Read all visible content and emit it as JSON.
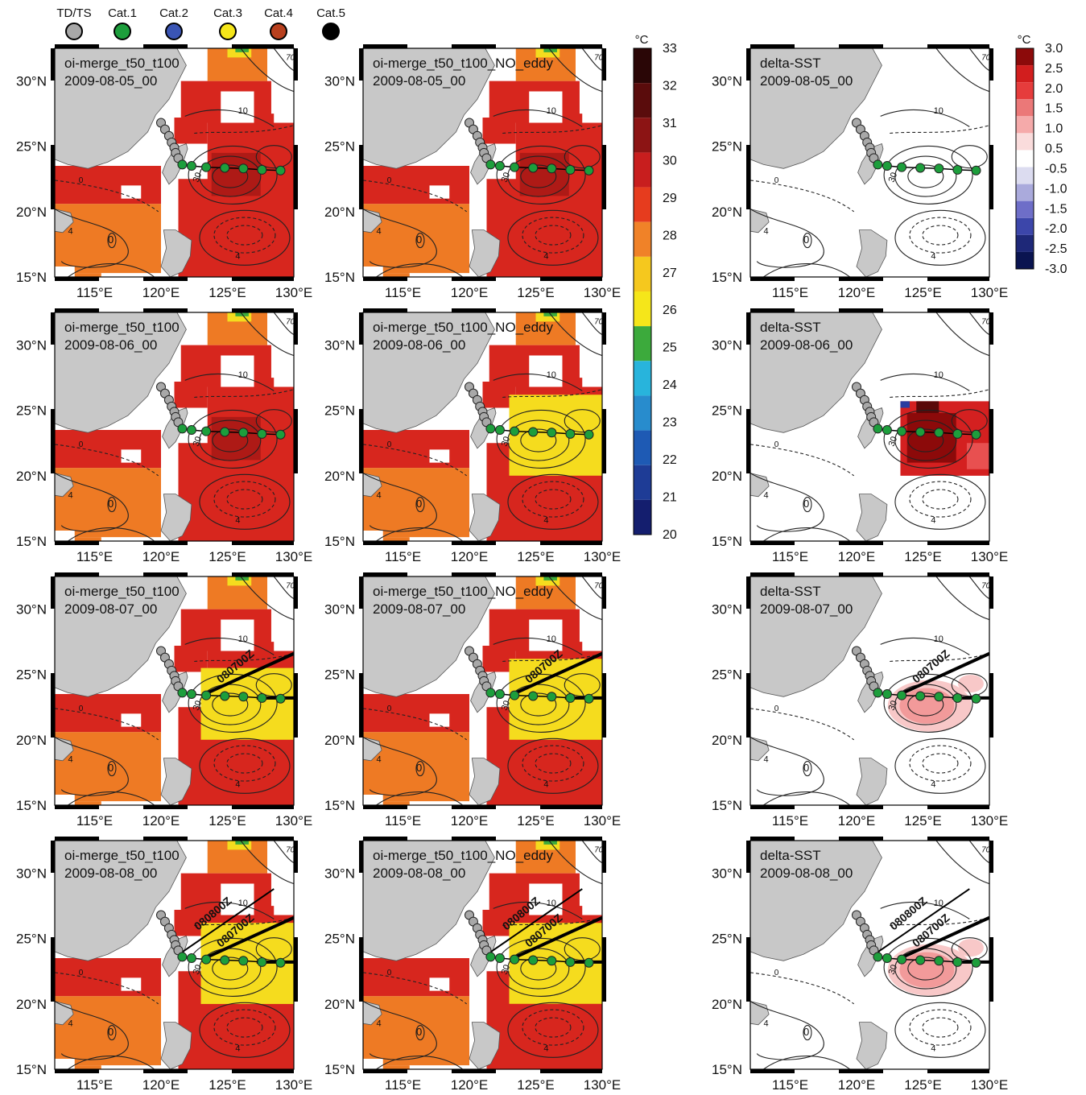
{
  "legend": {
    "items": [
      {
        "label": "TD/TS",
        "color": "#a8a8a8"
      },
      {
        "label": "Cat.1",
        "color": "#1d9e3c"
      },
      {
        "label": "Cat.2",
        "color": "#3a55b4"
      },
      {
        "label": "Cat.3",
        "color": "#f5e61a"
      },
      {
        "label": "Cat.4",
        "color": "#b8401e"
      },
      {
        "label": "Cat.5",
        "color": "#000000"
      }
    ]
  },
  "axes": {
    "lat_labels": [
      "30°N",
      "25°N",
      "20°N",
      "15°N"
    ],
    "lon_labels": [
      "115°E",
      "120°E",
      "125°E",
      "130°E"
    ]
  },
  "colorbar_sst": {
    "unit": "°C",
    "ticks": [
      "33",
      "32",
      "31",
      "30",
      "29",
      "28",
      "27",
      "26",
      "25",
      "24",
      "23",
      "22",
      "21",
      "20"
    ],
    "colors": [
      "#2a0606",
      "#5a0c0c",
      "#8c1414",
      "#c81e1e",
      "#e63c1e",
      "#f08228",
      "#f5c81e",
      "#f5e61a",
      "#3caa3c",
      "#28b4dc",
      "#288ccd",
      "#1e5ab4",
      "#1e3c96",
      "#141e6e"
    ]
  },
  "colorbar_delta": {
    "unit": "°C",
    "ticks": [
      "3.0",
      "2.5",
      "2.0",
      "1.5",
      "1.0",
      "0.5",
      "-0.5",
      "-1.0",
      "-1.5",
      "-2.0",
      "-2.5",
      "-3.0"
    ],
    "colors": [
      "#8c0a0a",
      "#d21e1e",
      "#e63c3c",
      "#eb7878",
      "#f5aaaa",
      "#fadcdc",
      "#ffffff",
      "#dcdcf0",
      "#aaaadc",
      "#6e6ec8",
      "#3c46aa",
      "#1e2878",
      "#0a1450"
    ]
  },
  "contour_labels": {
    "c10": "10",
    "c4": "4",
    "c0": "0",
    "c30": "30",
    "c70": "70"
  },
  "track_labels": {
    "d0807": "080700Z",
    "d0808": "080800Z"
  },
  "rows": [
    {
      "date": "2009-08-05_00",
      "n_track": 0
    },
    {
      "date": "2009-08-06_00",
      "n_track": 0
    },
    {
      "date": "2009-08-07_00",
      "n_track": 1
    },
    {
      "date": "2009-08-08_00",
      "n_track": 2
    }
  ],
  "columns": [
    {
      "title": "oi-merge_t50_t100",
      "type": "sst"
    },
    {
      "title": "oi-merge_t50_t100_NO_eddy",
      "type": "noeddy"
    },
    {
      "title": "delta-SST",
      "type": "delta"
    }
  ]
}
